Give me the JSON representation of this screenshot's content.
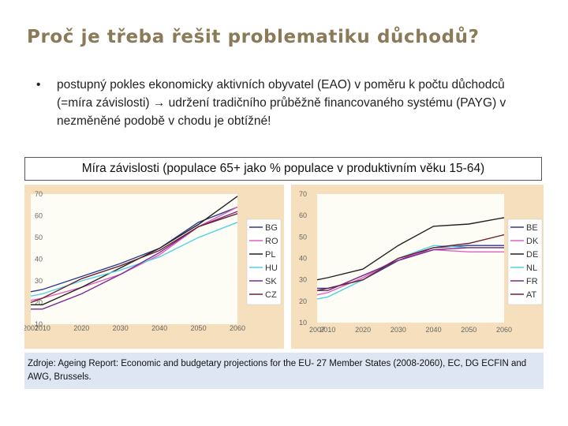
{
  "slide": {
    "title": "Proč je třeba řešit problematiku důchodů?",
    "bullet_symbol": "•",
    "bullet_text": "postupný pokles ekonomicky aktivních obyvatel (EAO) v poměru k počtu důchodců (=míra závislosti) → udržení tradičního průběžně financovaného systému (PAYG) v nezměněné podobě v chodu je obtížné!",
    "chart_caption": "Míra závislosti (populace 65+ jako % populace v produktivním věku 15-64)",
    "source": "Zdroje: Ageing Report: Economic and budgetary projections for the EU- 27 Member States (2008-2060), EC, DG ECFIN and AWG, Brussels."
  },
  "chart_data": [
    {
      "type": "line",
      "x": [
        2007,
        2010,
        2020,
        2030,
        2040,
        2050,
        2060
      ],
      "ylim": [
        10,
        70
      ],
      "yticks": [
        10,
        20,
        30,
        40,
        50,
        60,
        70
      ],
      "grid": false,
      "legend_position": "right",
      "series": [
        {
          "name": "BG",
          "color": "#2b3a8c",
          "values": [
            25,
            26,
            32,
            38,
            45,
            57,
            64
          ]
        },
        {
          "name": "RO",
          "color": "#e060c0",
          "values": [
            21,
            22,
            27,
            33,
            42,
            55,
            64
          ]
        },
        {
          "name": "PL",
          "color": "#222222",
          "values": [
            19,
            19,
            27,
            36,
            45,
            56,
            69
          ]
        },
        {
          "name": "HU",
          "color": "#55d0e8",
          "values": [
            23,
            24,
            30,
            35,
            41,
            50,
            57
          ]
        },
        {
          "name": "SK",
          "color": "#7a2a90",
          "values": [
            17,
            17,
            24,
            33,
            43,
            55,
            62
          ]
        },
        {
          "name": "CZ",
          "color": "#6a2430",
          "values": [
            20,
            22,
            31,
            37,
            44,
            55,
            61
          ]
        }
      ]
    },
    {
      "type": "line",
      "x": [
        2007,
        2010,
        2020,
        2030,
        2040,
        2050,
        2060
      ],
      "ylim": [
        10,
        70
      ],
      "yticks": [
        10,
        20,
        30,
        40,
        50,
        60,
        70
      ],
      "grid": false,
      "legend_position": "right",
      "series": [
        {
          "name": "BE",
          "color": "#2b3a8c",
          "values": [
            26,
            26,
            30,
            39,
            45,
            46,
            46
          ]
        },
        {
          "name": "DK",
          "color": "#e060c0",
          "values": [
            23,
            24,
            31,
            40,
            44,
            43,
            43
          ]
        },
        {
          "name": "DE",
          "color": "#222222",
          "values": [
            30,
            31,
            35,
            46,
            55,
            56,
            59
          ]
        },
        {
          "name": "NL",
          "color": "#55d0e8",
          "values": [
            21,
            22,
            30,
            40,
            46,
            45,
            45
          ]
        },
        {
          "name": "FR",
          "color": "#7a2a90",
          "values": [
            25,
            25,
            32,
            39,
            44,
            45,
            45
          ]
        },
        {
          "name": "AT",
          "color": "#6a2430",
          "values": [
            25,
            26,
            30,
            40,
            45,
            47,
            51
          ]
        }
      ]
    }
  ]
}
